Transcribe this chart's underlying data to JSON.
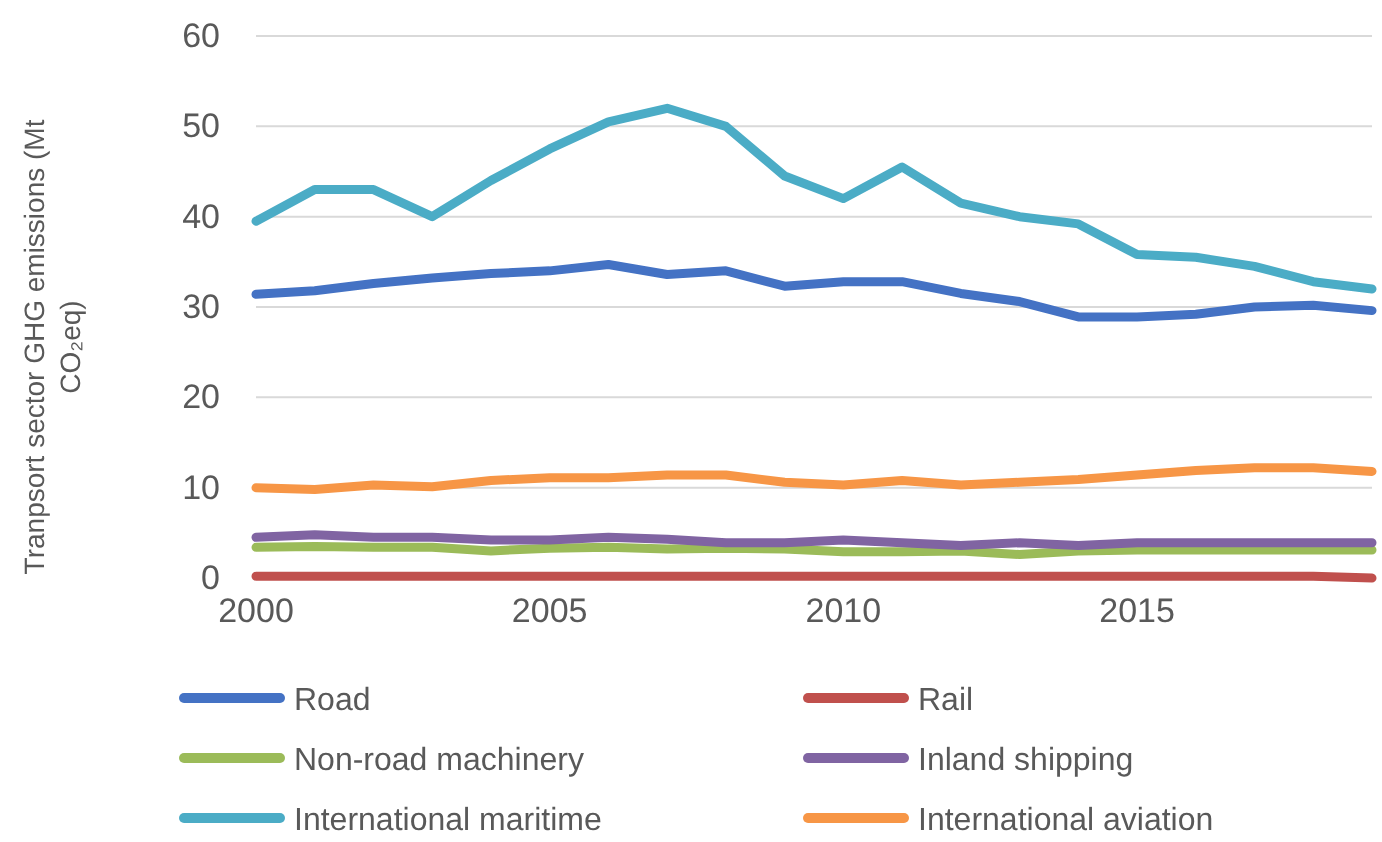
{
  "chart_data": {
    "type": "line",
    "ylabel": "Tranpsort sector GHG emissions (Mt CO₂eq)",
    "x": [
      2000,
      2001,
      2002,
      2003,
      2004,
      2005,
      2006,
      2007,
      2008,
      2009,
      2010,
      2011,
      2012,
      2013,
      2014,
      2015,
      2016,
      2017,
      2018,
      2019
    ],
    "xlim": [
      2000,
      2019
    ],
    "xticks": [
      2000,
      2005,
      2010,
      2015
    ],
    "ylim": [
      0,
      60
    ],
    "yticks": [
      0,
      10,
      20,
      30,
      40,
      50,
      60
    ],
    "grid": "y",
    "legend": "bottom",
    "marker": "none",
    "line_style": "solid",
    "series": [
      {
        "name": "Road",
        "color": "#4472c4",
        "values": [
          31.4,
          31.8,
          32.6,
          33.2,
          33.7,
          34,
          34.7,
          33.6,
          34,
          32.3,
          32.8,
          32.8,
          31.5,
          30.6,
          28.9,
          28.9,
          29.2,
          30,
          30.2,
          29.6
        ]
      },
      {
        "name": "Rail",
        "color": "#c0504d",
        "values": [
          0.2,
          0.2,
          0.2,
          0.2,
          0.2,
          0.2,
          0.2,
          0.2,
          0.2,
          0.2,
          0.2,
          0.2,
          0.2,
          0.2,
          0.2,
          0.2,
          0.2,
          0.2,
          0.2,
          0
        ]
      },
      {
        "name": "Non-road machinery",
        "color": "#9bbb59",
        "values": [
          3.4,
          3.5,
          3.4,
          3.4,
          3.0,
          3.3,
          3.4,
          3.2,
          3.3,
          3.2,
          2.9,
          2.9,
          3.0,
          2.6,
          3.0,
          3.1,
          3.1,
          3.1,
          3.1,
          3.1
        ]
      },
      {
        "name": "Inland shipping",
        "color": "#8064a2",
        "values": [
          4.5,
          4.8,
          4.5,
          4.5,
          4.2,
          4.2,
          4.5,
          4.3,
          3.9,
          3.9,
          4.2,
          3.9,
          3.6,
          3.9,
          3.6,
          3.9,
          3.9,
          3.9,
          3.9,
          3.9
        ]
      },
      {
        "name": "International maritime",
        "color": "#4bacc6",
        "values": [
          39.5,
          43,
          43,
          40,
          44,
          47.5,
          50.5,
          52,
          50,
          44.5,
          42,
          45.5,
          41.5,
          40,
          39.2,
          35.8,
          35.5,
          34.5,
          32.8,
          32
        ]
      },
      {
        "name": "International aviation",
        "color": "#f79646",
        "values": [
          10,
          9.8,
          10.3,
          10.1,
          10.8,
          11.1,
          11.1,
          11.4,
          11.4,
          10.6,
          10.3,
          10.8,
          10.3,
          10.6,
          10.9,
          11.4,
          11.9,
          12.2,
          12.2,
          11.8
        ]
      }
    ]
  }
}
